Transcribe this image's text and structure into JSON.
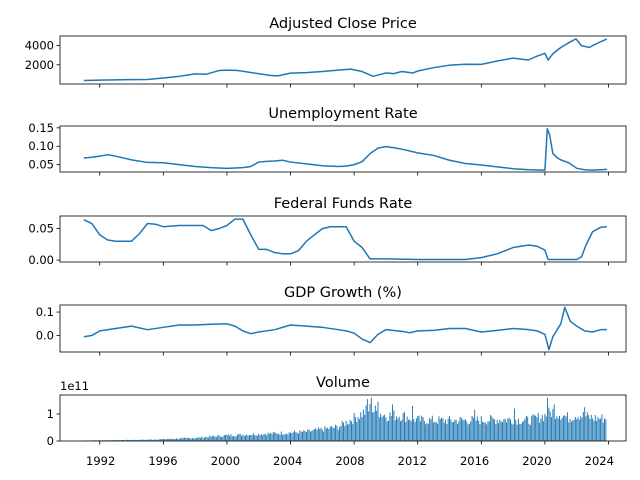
{
  "line_color": "#1f77b4",
  "x_ticks": [
    "1992",
    "1996",
    "2000",
    "2004",
    "2008",
    "2012",
    "2016",
    "2020",
    "2024"
  ],
  "chart_data": [
    {
      "type": "line",
      "title": "Adjusted Close Price",
      "ylim": [
        0,
        5000
      ],
      "yticks": [
        2000,
        4000
      ],
      "ytick_labels": [
        "2000",
        "4000"
      ],
      "series": [
        {
          "x": [
            1991.0,
            1992.0,
            1993.0,
            1994.0,
            1995.0,
            1996.0,
            1997.0,
            1998.0,
            1998.7,
            1999.5,
            2000.0,
            2000.7,
            2001.7,
            2002.7,
            2003.2,
            2004.0,
            2005.0,
            2006.0,
            2007.0,
            2007.8,
            2008.5,
            2009.2,
            2010.0,
            2010.5,
            2011.0,
            2011.7,
            2012.0,
            2013.0,
            2014.0,
            2015.0,
            2016.0,
            2017.0,
            2018.0,
            2018.95,
            2019.5,
            2020.0,
            2020.2,
            2020.5,
            2021.0,
            2021.5,
            2021.95,
            2022.3,
            2022.8,
            2023.0,
            2023.5,
            2023.9
          ],
          "y": [
            370,
            400,
            430,
            460,
            470,
            620,
            800,
            1050,
            1020,
            1400,
            1450,
            1400,
            1150,
            900,
            850,
            1130,
            1190,
            1300,
            1450,
            1550,
            1300,
            800,
            1150,
            1080,
            1300,
            1150,
            1350,
            1700,
            1960,
            2060,
            2040,
            2400,
            2700,
            2500,
            2900,
            3200,
            2500,
            3150,
            3800,
            4300,
            4700,
            4000,
            3800,
            4000,
            4400,
            4700
          ]
        }
      ]
    },
    {
      "type": "line",
      "title": "Unemployment Rate",
      "ylim": [
        0.03,
        0.155
      ],
      "yticks": [
        0.05,
        0.1,
        0.15
      ],
      "ytick_labels": [
        "0.05",
        "0.10",
        "0.15"
      ],
      "series": [
        {
          "x": [
            1991.0,
            1991.5,
            1992.0,
            1992.5,
            1993.0,
            1994.0,
            1995.0,
            1996.0,
            1997.0,
            1998.0,
            1999.0,
            2000.0,
            2001.0,
            2001.5,
            2002.0,
            2002.5,
            2003.0,
            2003.5,
            2004.0,
            2005.0,
            2006.0,
            2007.0,
            2007.5,
            2008.0,
            2008.5,
            2009.0,
            2009.5,
            2010.0,
            2010.5,
            2011.0,
            2012.0,
            2013.0,
            2014.0,
            2015.0,
            2016.0,
            2017.0,
            2018.0,
            2019.0,
            2020.0,
            2020.15,
            2020.3,
            2020.5,
            2020.8,
            2021.0,
            2021.5,
            2022.0,
            2022.5,
            2023.0,
            2023.5,
            2023.9
          ],
          "y": [
            0.068,
            0.07,
            0.073,
            0.077,
            0.073,
            0.063,
            0.056,
            0.055,
            0.05,
            0.045,
            0.042,
            0.04,
            0.042,
            0.045,
            0.057,
            0.059,
            0.06,
            0.062,
            0.057,
            0.052,
            0.047,
            0.045,
            0.046,
            0.05,
            0.058,
            0.08,
            0.095,
            0.099,
            0.096,
            0.092,
            0.082,
            0.075,
            0.062,
            0.053,
            0.049,
            0.044,
            0.039,
            0.036,
            0.035,
            0.148,
            0.13,
            0.08,
            0.068,
            0.063,
            0.055,
            0.04,
            0.036,
            0.035,
            0.036,
            0.037
          ]
        }
      ]
    },
    {
      "type": "line",
      "title": "Federal Funds Rate",
      "ylim": [
        -0.003,
        0.07
      ],
      "yticks": [
        0.0,
        0.05
      ],
      "ytick_labels": [
        "0.00",
        "0.05"
      ],
      "series": [
        {
          "x": [
            1991.0,
            1991.5,
            1992.0,
            1992.5,
            1993.0,
            1993.5,
            1994.0,
            1994.5,
            1995.0,
            1995.5,
            1996.0,
            1997.0,
            1998.0,
            1998.5,
            1999.0,
            1999.5,
            2000.0,
            2000.5,
            2001.0,
            2001.5,
            2002.0,
            2002.5,
            2003.0,
            2003.5,
            2004.0,
            2004.5,
            2005.0,
            2006.0,
            2006.5,
            2007.0,
            2007.5,
            2008.0,
            2008.5,
            2009.0,
            2010.0,
            2012.0,
            2015.0,
            2016.0,
            2017.0,
            2018.0,
            2019.0,
            2019.5,
            2020.0,
            2020.2,
            2021.0,
            2022.0,
            2022.3,
            2022.6,
            2023.0,
            2023.5,
            2023.9
          ],
          "y": [
            0.064,
            0.058,
            0.04,
            0.032,
            0.03,
            0.03,
            0.03,
            0.042,
            0.058,
            0.057,
            0.053,
            0.055,
            0.055,
            0.055,
            0.047,
            0.05,
            0.055,
            0.065,
            0.065,
            0.04,
            0.017,
            0.017,
            0.012,
            0.01,
            0.01,
            0.015,
            0.03,
            0.05,
            0.053,
            0.053,
            0.053,
            0.03,
            0.02,
            0.002,
            0.002,
            0.001,
            0.001,
            0.004,
            0.01,
            0.02,
            0.024,
            0.022,
            0.016,
            0.001,
            0.001,
            0.001,
            0.005,
            0.025,
            0.045,
            0.052,
            0.053
          ]
        }
      ]
    },
    {
      "type": "line",
      "title": "GDP Growth (%)",
      "ylim": [
        -0.07,
        0.13
      ],
      "yticks": [
        0.0,
        0.1
      ],
      "ytick_labels": [
        "0.0",
        "0.1"
      ],
      "series": [
        {
          "x": [
            1991.0,
            1991.5,
            1992.0,
            1993.0,
            1994.0,
            1995.0,
            1996.0,
            1997.0,
            1998.0,
            1999.0,
            2000.0,
            2000.5,
            2001.0,
            2001.5,
            2002.0,
            2003.0,
            2004.0,
            2005.0,
            2006.0,
            2007.0,
            2007.5,
            2008.0,
            2008.5,
            2009.0,
            2009.5,
            2010.0,
            2011.0,
            2011.5,
            2012.0,
            2013.0,
            2014.0,
            2015.0,
            2016.0,
            2017.0,
            2018.0,
            2019.0,
            2019.5,
            2020.0,
            2020.25,
            2020.5,
            2021.0,
            2021.25,
            2021.6,
            2022.0,
            2022.5,
            2023.0,
            2023.5,
            2023.9
          ],
          "y": [
            -0.005,
            0.0,
            0.02,
            0.03,
            0.04,
            0.025,
            0.035,
            0.045,
            0.045,
            0.048,
            0.05,
            0.04,
            0.02,
            0.008,
            0.015,
            0.025,
            0.045,
            0.04,
            0.035,
            0.025,
            0.02,
            0.01,
            -0.015,
            -0.03,
            0.005,
            0.025,
            0.018,
            0.012,
            0.02,
            0.022,
            0.03,
            0.03,
            0.015,
            0.022,
            0.03,
            0.025,
            0.02,
            0.005,
            -0.06,
            -0.005,
            0.05,
            0.12,
            0.06,
            0.04,
            0.02,
            0.015,
            0.025,
            0.025
          ]
        }
      ]
    },
    {
      "type": "bar",
      "title": "Volume",
      "ylim": [
        0,
        1.7
      ],
      "yticks": [
        0,
        1
      ],
      "ytick_labels": [
        "0",
        "1"
      ],
      "offset_label": "1e11",
      "series": [
        {
          "x_start": 1991.0,
          "x_end": 2023.9,
          "envelope_x": [
            1991.0,
            1995.0,
            1998.0,
            2000.0,
            2003.0,
            2005.0,
            2007.0,
            2008.0,
            2009.0,
            2010.0,
            2011.0,
            2012.0,
            2014.0,
            2016.0,
            2018.0,
            2019.0,
            2020.0,
            2020.5,
            2021.0,
            2021.5,
            2022.0,
            2023.0,
            2023.9
          ],
          "envelope_y": [
            0.02,
            0.05,
            0.12,
            0.22,
            0.3,
            0.36,
            0.55,
            0.9,
            1.25,
            1.0,
            1.0,
            0.82,
            0.8,
            0.82,
            0.85,
            0.8,
            1.0,
            1.15,
            1.05,
            0.9,
            1.05,
            0.9,
            0.88
          ],
          "spikes": [
            [
              2008.8,
              1.55
            ],
            [
              2009.1,
              1.6
            ],
            [
              2009.5,
              1.45
            ],
            [
              2010.4,
              1.35
            ],
            [
              2011.7,
              1.3
            ],
            [
              2015.6,
              1.15
            ],
            [
              2018.1,
              1.2
            ],
            [
              2020.2,
              1.6
            ],
            [
              2020.6,
              1.35
            ],
            [
              2022.5,
              1.25
            ]
          ]
        }
      ]
    }
  ]
}
